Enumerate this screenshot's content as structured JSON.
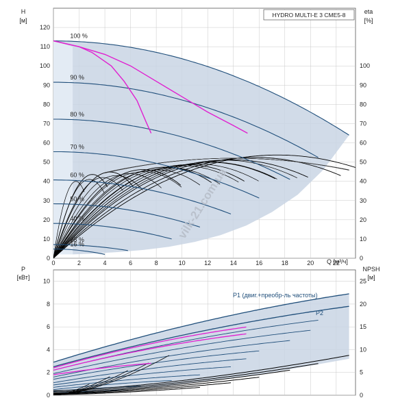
{
  "chart_title": "HYDRO MULTI-E 3 CME5-8",
  "watermark": "vilk-21.com.ua",
  "colors": {
    "envelope": "#c9d5e4",
    "envelope_light": "#e3ebf4",
    "qh_curves": "#1f4e7a",
    "efficiency_curves": "#000000",
    "highlight": "#e020d0",
    "grid": "#c8c8c8"
  },
  "chart_data": [
    {
      "type": "line",
      "panel": "top",
      "y_axis_label": "H",
      "y_axis_unit": "[м]",
      "y2_axis_label": "eta",
      "y2_axis_unit": "[%]",
      "x_axis_label": "Q [м³/ч]",
      "xlim": [
        0,
        23.5
      ],
      "ylim": [
        0,
        130
      ],
      "x_ticks": [
        0,
        2,
        4,
        6,
        8,
        10,
        12,
        14,
        16,
        18,
        20,
        22
      ],
      "y_ticks": [
        0,
        10,
        20,
        30,
        40,
        50,
        60,
        70,
        80,
        90,
        100,
        110,
        120
      ],
      "y2_ticks": [
        0,
        10,
        20,
        30,
        40,
        50,
        60,
        70,
        80,
        90,
        100
      ],
      "grid": true,
      "speed_curves": [
        {
          "label": "100 %",
          "h0": 113,
          "q_end": 23.0,
          "h_end": 64
        },
        {
          "label": "90 %",
          "h0": 91.5,
          "q_end": 20.7,
          "h_end": 52
        },
        {
          "label": "80 %",
          "h0": 72.3,
          "q_end": 18.4,
          "h_end": 41
        },
        {
          "label": "70 %",
          "h0": 55.4,
          "q_end": 16.1,
          "h_end": 31
        },
        {
          "label": "60 %",
          "h0": 40.7,
          "q_end": 13.8,
          "h_end": 23
        },
        {
          "label": "50 %",
          "h0": 28.3,
          "q_end": 11.5,
          "h_end": 16
        },
        {
          "label": "40 %",
          "h0": 18.1,
          "q_end": 9.2,
          "h_end": 10
        },
        {
          "label": "25 %",
          "h0": 7.1,
          "q_end": 5.8,
          "h_end": 4
        },
        {
          "label": "16 %",
          "h0": 4.8,
          "q_end": 4.0,
          "h_end": 2
        }
      ],
      "highlight_curves": [
        {
          "points": [
            [
              0,
              113
            ],
            [
              2,
              110
            ],
            [
              4,
              106
            ],
            [
              6,
              100
            ],
            [
              8,
              92
            ],
            [
              10,
              84
            ],
            [
              12,
              76
            ],
            [
              14,
              69
            ],
            [
              15.1,
              65
            ]
          ]
        },
        {
          "points": [
            [
              0,
              113
            ],
            [
              2,
              110
            ],
            [
              3,
              107
            ],
            [
              4.5,
              100
            ],
            [
              5.5,
              92
            ],
            [
              6.5,
              82
            ],
            [
              7.2,
              71
            ],
            [
              7.6,
              65
            ]
          ]
        }
      ],
      "efficiency_peak_eta": 51
    },
    {
      "type": "line",
      "panel": "bottom",
      "y_axis_label": "P",
      "y_axis_unit": "[кВт]",
      "y2_axis_label": "NPSH",
      "y2_axis_unit": "[м]",
      "xlim": [
        0,
        23.5
      ],
      "ylim": [
        0,
        11
      ],
      "y_ticks": [
        0,
        2,
        4,
        6,
        8,
        10
      ],
      "y2_ticks": [
        0,
        5,
        10,
        15,
        20,
        25
      ],
      "grid": true,
      "series": [
        {
          "name": "P1 (двиг.+преобр-ль частоты)",
          "start": 2.9,
          "end": 8.9,
          "q_end": 23.0
        },
        {
          "name": "P2",
          "start": 2.5,
          "end": 7.8,
          "q_end": 23.0
        }
      ],
      "power_curves": [
        {
          "start": 2.2,
          "end": 6.6,
          "q_end": 20.7
        },
        {
          "start": 1.9,
          "end": 5.7,
          "q_end": 20.0
        },
        {
          "start": 1.6,
          "end": 4.8,
          "q_end": 18.4
        },
        {
          "start": 1.4,
          "end": 3.9,
          "q_end": 16.1
        },
        {
          "start": 1.1,
          "end": 3.2,
          "q_end": 15.0
        },
        {
          "start": 0.9,
          "end": 2.5,
          "q_end": 13.8
        },
        {
          "start": 0.7,
          "end": 1.8,
          "q_end": 11.5
        },
        {
          "start": 0.5,
          "end": 1.3,
          "q_end": 9.2
        },
        {
          "start": 0.35,
          "end": 0.8,
          "q_end": 6.8
        },
        {
          "start": 0.2,
          "end": 0.45,
          "q_end": 5.8
        },
        {
          "start": 0.1,
          "end": 0.25,
          "q_end": 4.0
        }
      ],
      "highlight_power": [
        {
          "start": 2.4,
          "end": 6.0,
          "q_end": 15.1
        },
        {
          "start": 2.2,
          "end": 5.4,
          "q_end": 15.1
        },
        {
          "start": 1.8,
          "end": 2.8,
          "q_end": 7.6
        }
      ],
      "npsh_curves": [
        {
          "start": 0.4,
          "end": 3.5,
          "q_end": 23.0
        },
        {
          "start": 0.3,
          "end": 2.8,
          "q_end": 20.7
        },
        {
          "start": 0.2,
          "end": 2.2,
          "q_end": 18.4
        },
        {
          "start": 0.15,
          "end": 1.6,
          "q_end": 16.1
        },
        {
          "start": 0.1,
          "end": 1.1,
          "q_end": 13.8
        },
        {
          "start": 0.05,
          "end": 0.7,
          "q_end": 11.5
        }
      ]
    }
  ]
}
